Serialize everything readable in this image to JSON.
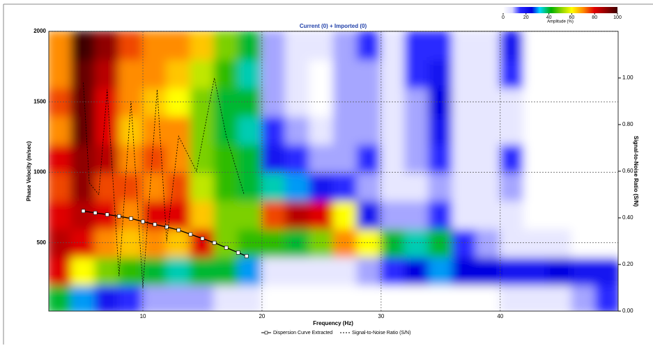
{
  "chart_data": {
    "type": "heatmap",
    "title": "Current (0) + Imported (0)",
    "x_label": "Frequency (Hz)",
    "y_label": "Phase Velocity (m/sec)",
    "y2_label": "Signal-to-Noise Ratio (S/N)",
    "xlim": [
      2.1,
      49.9
    ],
    "ylim": [
      15,
      2000
    ],
    "y2lim": [
      0,
      1.2
    ],
    "xticks": [
      10,
      20,
      30,
      40
    ],
    "yticks": [
      500,
      1000,
      1500,
      2000
    ],
    "y2ticks": [
      {
        "value": 0,
        "label": "0.00"
      },
      {
        "value": 0.2,
        "label": "0.20"
      },
      {
        "value": 0.4,
        "label": "0.40"
      },
      {
        "value": 0.6,
        "label": "0.60"
      },
      {
        "value": 0.8,
        "label": "0.80"
      },
      {
        "value": 1.0,
        "label": "1.00"
      }
    ],
    "grid": true,
    "colorbar": {
      "label": "Amplitude (%)",
      "ticks": [
        0,
        20,
        40,
        60,
        80,
        100
      ]
    },
    "colorscale": [
      [
        0,
        "#ffffff"
      ],
      [
        8,
        "#d8d8ff"
      ],
      [
        15,
        "#2a2aff"
      ],
      [
        25,
        "#0000e0"
      ],
      [
        32,
        "#00d8ff"
      ],
      [
        42,
        "#00b000"
      ],
      [
        52,
        "#9ad800"
      ],
      [
        60,
        "#ffff00"
      ],
      [
        70,
        "#ff8c00"
      ],
      [
        80,
        "#e00000"
      ],
      [
        100,
        "#400000"
      ]
    ],
    "heatmap": {
      "x": [
        3,
        5,
        7,
        9,
        11,
        13,
        15,
        17,
        19,
        21,
        23,
        25,
        27,
        29,
        31,
        33,
        35,
        37,
        39,
        41,
        43,
        45,
        47,
        49
      ],
      "y": [
        100,
        300,
        500,
        700,
        900,
        1100,
        1300,
        1500,
        1700,
        1900
      ],
      "z": [
        [
          40,
          30,
          20,
          15,
          10,
          10,
          10,
          5,
          5,
          0,
          0,
          0,
          0,
          0,
          0,
          0,
          0,
          0,
          0,
          5,
          5,
          5,
          10,
          15
        ],
        [
          80,
          60,
          50,
          45,
          40,
          35,
          40,
          40,
          30,
          5,
          5,
          5,
          5,
          10,
          15,
          25,
          30,
          25,
          25,
          20,
          20,
          25,
          20,
          20
        ],
        [
          85,
          80,
          70,
          65,
          70,
          65,
          80,
          50,
          45,
          45,
          40,
          50,
          70,
          60,
          40,
          35,
          40,
          15,
          10,
          5,
          5,
          5,
          0,
          0
        ],
        [
          80,
          85,
          80,
          70,
          80,
          80,
          65,
          50,
          50,
          75,
          85,
          80,
          60,
          20,
          10,
          10,
          15,
          5,
          5,
          5,
          0,
          0,
          0,
          0
        ],
        [
          75,
          90,
          75,
          75,
          70,
          75,
          55,
          45,
          40,
          35,
          30,
          20,
          15,
          10,
          5,
          5,
          10,
          5,
          5,
          10,
          0,
          0,
          0,
          0
        ],
        [
          80,
          90,
          85,
          70,
          75,
          70,
          50,
          45,
          40,
          20,
          15,
          10,
          10,
          15,
          5,
          10,
          15,
          5,
          5,
          15,
          0,
          0,
          0,
          0
        ],
        [
          70,
          95,
          80,
          65,
          70,
          70,
          50,
          40,
          35,
          15,
          10,
          5,
          10,
          10,
          5,
          10,
          20,
          5,
          5,
          5,
          0,
          0,
          0,
          0
        ],
        [
          75,
          95,
          80,
          70,
          65,
          60,
          50,
          40,
          40,
          10,
          5,
          0,
          10,
          10,
          5,
          10,
          25,
          5,
          5,
          5,
          0,
          0,
          0,
          0
        ],
        [
          70,
          95,
          85,
          70,
          70,
          65,
          55,
          45,
          35,
          10,
          5,
          0,
          10,
          10,
          5,
          15,
          20,
          5,
          5,
          15,
          0,
          0,
          0,
          0
        ],
        [
          70,
          100,
          90,
          75,
          70,
          70,
          65,
          50,
          40,
          10,
          5,
          5,
          10,
          15,
          5,
          15,
          15,
          5,
          5,
          20,
          0,
          0,
          0,
          0
        ]
      ]
    },
    "series": [
      {
        "name": "Dispersion Curve Extracted",
        "color": "#000000",
        "x": [
          5,
          6,
          7,
          8,
          9,
          10,
          11,
          12,
          13,
          14,
          15,
          16,
          17,
          18,
          18.7
        ],
        "values": [
          725,
          712,
          700,
          688,
          672,
          650,
          630,
          612,
          590,
          560,
          530,
          500,
          465,
          430,
          405
        ]
      },
      {
        "name": "Signal-to-Noise Ratio (S/N)",
        "color": "#000000",
        "axis": "y2",
        "x": [
          5,
          5.5,
          6.3,
          7,
          8,
          9,
          10,
          11.2,
          12,
          13,
          14.5,
          16,
          17,
          18.5
        ],
        "values": [
          0.98,
          0.55,
          0.5,
          0.95,
          0.15,
          0.9,
          0.1,
          0.95,
          0.3,
          0.75,
          0.6,
          1.0,
          0.75,
          0.5
        ]
      }
    ]
  }
}
